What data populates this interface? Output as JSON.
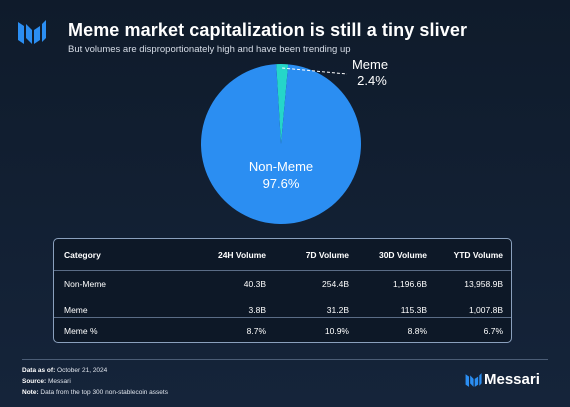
{
  "header": {
    "title": "Meme market capitalization is still a tiny sliver",
    "subtitle": "But volumes are disproportionately high and have been trending up"
  },
  "chart_data": {
    "type": "pie",
    "title": "Meme market capitalization is still a tiny sliver",
    "subtitle": "But volumes are disproportionately high and have been trending up",
    "slices": [
      {
        "label": "Non-Meme",
        "value": 97.6,
        "value_label": "97.6%",
        "color": "#2b8ef2"
      },
      {
        "label": "Meme",
        "value": 2.4,
        "value_label": "2.4%",
        "color": "#25d6c9"
      }
    ]
  },
  "table": {
    "columns": [
      "Category",
      "24H Volume",
      "7D Volume",
      "30D Volume",
      "YTD Volume"
    ],
    "rows": [
      [
        "Non-Meme",
        "40.3B",
        "254.4B",
        "1,196.6B",
        "13,958.9B"
      ],
      [
        "Meme",
        "3.8B",
        "31.2B",
        "115.3B",
        "1,007.8B"
      ],
      [
        "Meme %",
        "8.7%",
        "10.9%",
        "8.8%",
        "6.7%"
      ]
    ]
  },
  "footer": {
    "data_as_of_label": "Data as of:",
    "data_as_of": "October 21, 2024",
    "source_label": "Source:",
    "source": "Messari",
    "note_label": "Note:",
    "note": "Data from the top 300 non-stablecoin assets"
  },
  "brand": {
    "name": "Messari",
    "accent": "#2b8ef2"
  }
}
